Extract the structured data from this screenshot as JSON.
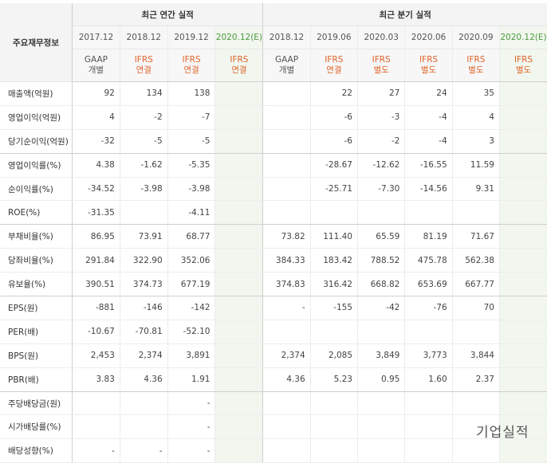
{
  "header": {
    "label_col": "주요재무정보",
    "annual_group": "최근 연간 실적",
    "quarter_group": "최근 분기 실적"
  },
  "annual_periods": [
    {
      "date": "2017.12",
      "std": "GAAP",
      "basis": "개별",
      "ifrs": false,
      "estimate": false
    },
    {
      "date": "2018.12",
      "std": "IFRS",
      "basis": "연결",
      "ifrs": true,
      "estimate": false
    },
    {
      "date": "2019.12",
      "std": "IFRS",
      "basis": "연결",
      "ifrs": true,
      "estimate": false
    },
    {
      "date": "2020.12(E)",
      "std": "IFRS",
      "basis": "연결",
      "ifrs": true,
      "estimate": true
    }
  ],
  "quarter_periods": [
    {
      "date": "2018.12",
      "std": "GAAP",
      "basis": "개별",
      "ifrs": false,
      "estimate": false
    },
    {
      "date": "2019.06",
      "std": "IFRS",
      "basis": "연결",
      "ifrs": true,
      "estimate": false
    },
    {
      "date": "2020.03",
      "std": "IFRS",
      "basis": "별도",
      "ifrs": true,
      "estimate": false
    },
    {
      "date": "2020.06",
      "std": "IFRS",
      "basis": "별도",
      "ifrs": true,
      "estimate": false
    },
    {
      "date": "2020.09",
      "std": "IFRS",
      "basis": "별도",
      "ifrs": true,
      "estimate": false
    },
    {
      "date": "2020.12(E)",
      "std": "IFRS",
      "basis": "별도",
      "ifrs": true,
      "estimate": true
    }
  ],
  "rows": [
    {
      "label": "매출액(억원)",
      "values": [
        "92",
        "134",
        "138",
        "",
        "",
        "22",
        "27",
        "24",
        "35",
        ""
      ],
      "group_end": false
    },
    {
      "label": "영업이익(억원)",
      "values": [
        "4",
        "-2",
        "-7",
        "",
        "",
        "-6",
        "-3",
        "-4",
        "4",
        ""
      ],
      "group_end": false
    },
    {
      "label": "당기순이익(억원)",
      "values": [
        "-32",
        "-5",
        "-5",
        "",
        "",
        "-6",
        "-2",
        "-4",
        "3",
        ""
      ],
      "group_end": true
    },
    {
      "label": "영업이익률(%)",
      "values": [
        "4.38",
        "-1.62",
        "-5.35",
        "",
        "",
        "-28.67",
        "-12.62",
        "-16.55",
        "11.59",
        ""
      ],
      "group_end": false
    },
    {
      "label": "순이익률(%)",
      "values": [
        "-34.52",
        "-3.98",
        "-3.98",
        "",
        "",
        "-25.71",
        "-7.30",
        "-14.56",
        "9.31",
        ""
      ],
      "group_end": false
    },
    {
      "label": "ROE(%)",
      "values": [
        "-31.35",
        "",
        "-4.11",
        "",
        "",
        "",
        "",
        "",
        "",
        ""
      ],
      "group_end": true
    },
    {
      "label": "부채비율(%)",
      "values": [
        "86.95",
        "73.91",
        "68.77",
        "",
        "73.82",
        "111.40",
        "65.59",
        "81.19",
        "71.67",
        ""
      ],
      "group_end": false
    },
    {
      "label": "당좌비율(%)",
      "values": [
        "291.84",
        "322.90",
        "352.06",
        "",
        "384.33",
        "183.42",
        "788.52",
        "475.78",
        "562.38",
        ""
      ],
      "group_end": false
    },
    {
      "label": "유보율(%)",
      "values": [
        "390.51",
        "374.73",
        "677.19",
        "",
        "374.83",
        "316.42",
        "668.82",
        "653.69",
        "667.77",
        ""
      ],
      "group_end": true
    },
    {
      "label": "EPS(원)",
      "values": [
        "-881",
        "-146",
        "-142",
        "",
        "-",
        "-155",
        "-42",
        "-76",
        "70",
        ""
      ],
      "group_end": false
    },
    {
      "label": "PER(배)",
      "values": [
        "-10.67",
        "-70.81",
        "-52.10",
        "",
        "",
        "",
        "",
        "",
        "",
        ""
      ],
      "group_end": false
    },
    {
      "label": "BPS(원)",
      "values": [
        "2,453",
        "2,374",
        "3,891",
        "",
        "2,374",
        "2,085",
        "3,849",
        "3,773",
        "3,844",
        ""
      ],
      "group_end": false
    },
    {
      "label": "PBR(배)",
      "values": [
        "3.83",
        "4.36",
        "1.91",
        "",
        "4.36",
        "5.23",
        "0.95",
        "1.60",
        "2.37",
        ""
      ],
      "group_end": true
    },
    {
      "label": "주당배당금(원)",
      "values": [
        "",
        "",
        "-",
        "",
        "",
        "",
        "",
        "",
        "",
        ""
      ],
      "group_end": false
    },
    {
      "label": "시가배당률(%)",
      "values": [
        "",
        "",
        "-",
        "",
        "",
        "",
        "",
        "",
        "",
        ""
      ],
      "group_end": false
    },
    {
      "label": "배당성향(%)",
      "values": [
        "-",
        "-",
        "-",
        "",
        "",
        "",
        "",
        "",
        "",
        ""
      ],
      "group_end": false
    }
  ],
  "watermark": "기업실적",
  "colors": {
    "ifrs": "#e0632a",
    "negative": "#d4342b",
    "estimate_bg": "#f1f7ef",
    "estimate_date": "#4b9a3c"
  }
}
